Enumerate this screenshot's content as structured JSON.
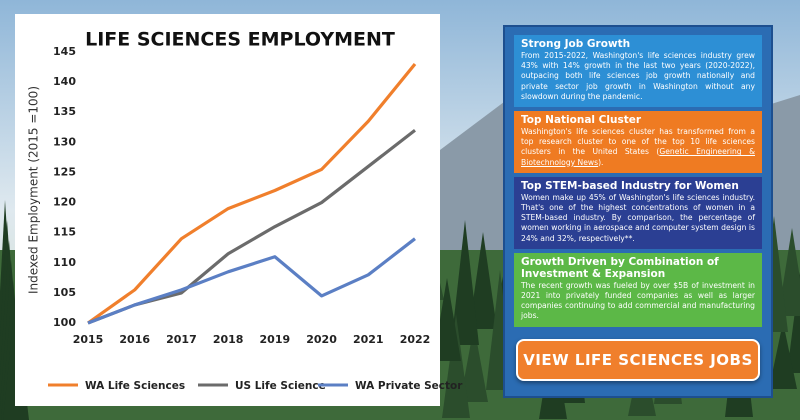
{
  "chart_data": {
    "type": "line",
    "title": "LIFE SCIENCES EMPLOYMENT",
    "y_label": "Indexed Employment (2015 =100)",
    "categories": [
      "2015",
      "2016",
      "2017",
      "2018",
      "2019",
      "2020",
      "2021",
      "2022"
    ],
    "series": [
      {
        "name": "WA Life Sciences",
        "color": "#f07f2c",
        "values": [
          100,
          105.5,
          114,
          119,
          122,
          125.5,
          133.5,
          143
        ]
      },
      {
        "name": "US Life Science",
        "color": "#6b6b6b",
        "values": [
          100,
          103,
          105,
          111.5,
          116,
          120,
          126,
          132
        ]
      },
      {
        "name": "WA Private Sector",
        "color": "#5b7fc4",
        "values": [
          100,
          103,
          105.5,
          108.5,
          111,
          104.5,
          108,
          114
        ]
      }
    ],
    "ylim": [
      100,
      145
    ],
    "yticks": [
      100,
      105,
      110,
      115,
      120,
      125,
      130,
      135,
      140,
      145
    ],
    "grid": false,
    "legend": "bottom"
  },
  "panels": [
    {
      "title": "Strong Job Growth",
      "body": "From 2015-2022, Washington's life sciences industry grew 43% with 14% growth in the last two years (2020-2022), outpacing both life sciences job growth nationally and private sector job growth in Washington without any slowdown during the pandemic.",
      "color": "#2d8fd5"
    },
    {
      "title": "Top National Cluster",
      "body": "Washington's life sciences cluster has transformed from a top research cluster to one of the top 10 life sciences clusters in the United States (",
      "link": "Genetic Engineering & Biotechnology News",
      "body_end": ").",
      "color": "#ef7b22"
    },
    {
      "title": "Top STEM-based Industry for Women",
      "body": "Women make up 45% of Washington's life sciences industry.  That's one of the highest concentrations of women in a STEM-based industry.  By comparison, the percentage of women working in aerospace and computer system design is 24% and 32%, respectively**.",
      "color": "#2b3f93"
    },
    {
      "title": "Growth Driven by Combination of Investment & Expansion",
      "body": "The recent growth was fueled by over $5B of investment in 2021 into privately funded companies as well as larger companies continuing to add commercial and manufacturing jobs.",
      "color": "#5cb847"
    }
  ],
  "button": "VIEW LIFE SCIENCES JOBS"
}
